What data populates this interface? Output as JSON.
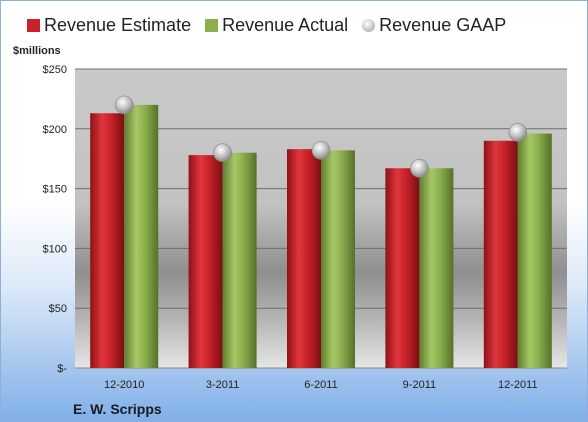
{
  "colors": {
    "estimate": "#c8232a",
    "actual": "#8caf4e",
    "gaap": "#b4b4b4"
  },
  "unit_label": "$millions",
  "company": "E. W. Scripps",
  "legend": {
    "estimate": "Revenue Estimate",
    "actual": "Revenue Actual",
    "gaap": "Revenue GAAP"
  },
  "chart_data": {
    "type": "bar",
    "categories": [
      "12-2010",
      "3-2011",
      "6-2011",
      "9-2011",
      "12-2011"
    ],
    "series": [
      {
        "name": "Revenue Estimate",
        "values": [
          213,
          178,
          183,
          167,
          190
        ]
      },
      {
        "name": "Revenue Actual",
        "values": [
          220,
          180,
          182,
          167,
          196
        ]
      },
      {
        "name": "Revenue GAAP",
        "values": [
          220,
          180,
          182,
          167,
          197
        ]
      }
    ],
    "ylim": [
      0,
      250
    ],
    "yticks": [
      0,
      50,
      100,
      150,
      200,
      250
    ],
    "ytick_labels": [
      "$-",
      "$50",
      "$100",
      "$150",
      "$200",
      "$250"
    ],
    "grid": true,
    "legend_position": "top"
  }
}
